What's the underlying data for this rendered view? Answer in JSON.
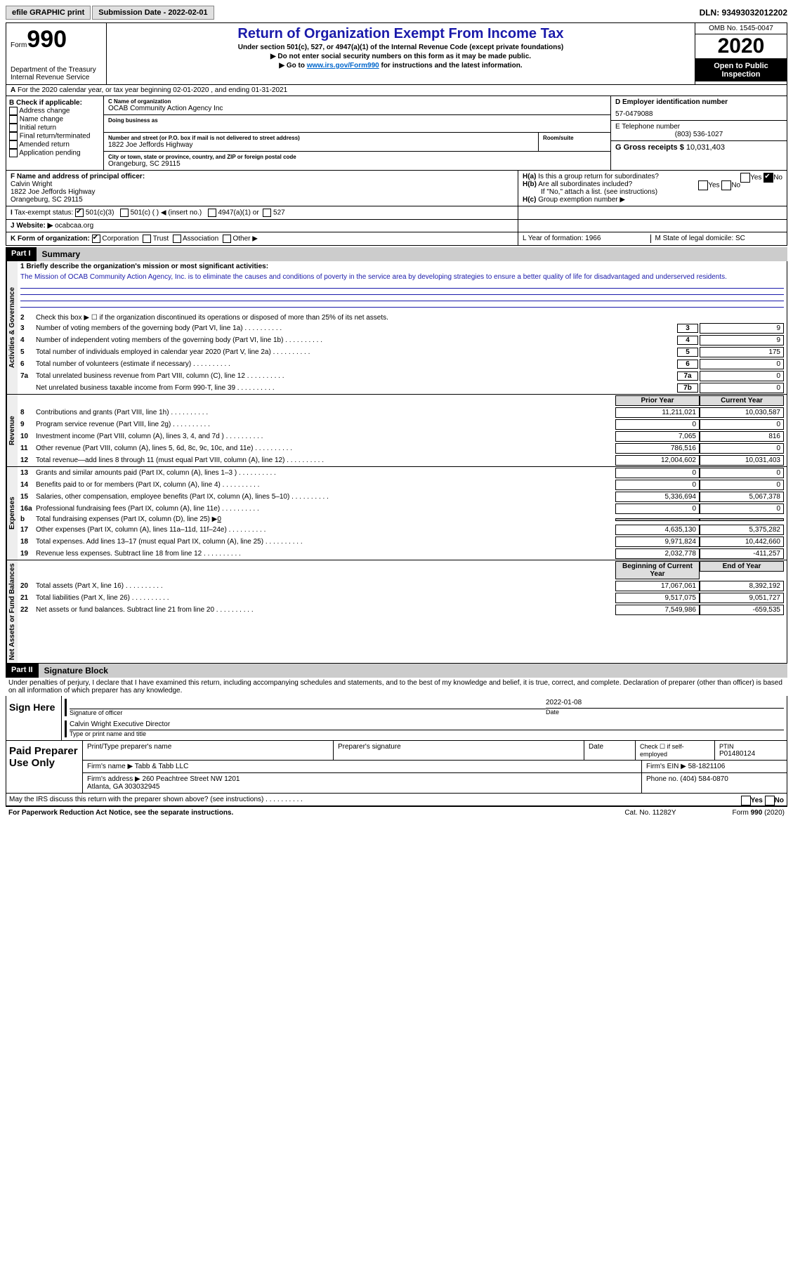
{
  "top": {
    "efile": "efile GRAPHIC print",
    "submission": "Submission Date - 2022-02-01",
    "dln": "DLN: 93493032012202"
  },
  "header": {
    "form_label": "Form",
    "form_num": "990",
    "dept": "Department of the Treasury\nInternal Revenue Service",
    "title": "Return of Organization Exempt From Income Tax",
    "sub1": "Under section 501(c), 527, or 4947(a)(1) of the Internal Revenue Code (except private foundations)",
    "sub2": "▶ Do not enter social security numbers on this form as it may be made public.",
    "sub3_pre": "▶ Go to ",
    "sub3_link": "www.irs.gov/Form990",
    "sub3_post": " for instructions and the latest information.",
    "omb": "OMB No. 1545-0047",
    "year": "2020",
    "open": "Open to Public Inspection"
  },
  "period": "For the 2020 calendar year, or tax year beginning 02-01-2020    , and ending 01-31-2021",
  "B": {
    "label": "B Check if applicable:",
    "items": [
      "Address change",
      "Name change",
      "Initial return",
      "Final return/terminated",
      "Amended return",
      "Application pending"
    ]
  },
  "C": {
    "name_label": "C Name of organization",
    "name": "OCAB Community Action Agency Inc",
    "dba": "Doing business as",
    "addr_label": "Number and street (or P.O. box if mail is not delivered to street address)",
    "addr": "1822 Joe Jeffords Highway",
    "room": "Room/suite",
    "city_label": "City or town, state or province, country, and ZIP or foreign postal code",
    "city": "Orangeburg, SC  29115"
  },
  "D": {
    "label": "D Employer identification number",
    "val": "57-0479088"
  },
  "E": {
    "label": "E Telephone number",
    "val": "(803) 536-1027"
  },
  "G": {
    "label": "G Gross receipts $",
    "val": "10,031,403"
  },
  "F": {
    "label": "F  Name and address of principal officer:",
    "name": "Calvin Wright",
    "addr": "1822 Joe Jeffords Highway\nOrangeburg, SC  29115"
  },
  "H": {
    "a": "Is this a group return for subordinates?",
    "b": "Are all subordinates included?",
    "b_note": "If \"No,\" attach a list. (see instructions)",
    "c": "Group exemption number ▶"
  },
  "I": {
    "label": "Tax-exempt status:",
    "opts": [
      "501(c)(3)",
      "501(c) (  ) ◀ (insert no.)",
      "4947(a)(1) or",
      "527"
    ]
  },
  "J": {
    "label": "Website: ▶",
    "val": "ocabcaa.org"
  },
  "K": {
    "label": "K Form of organization:",
    "opts": [
      "Corporation",
      "Trust",
      "Association",
      "Other ▶"
    ]
  },
  "L": "L Year of formation: 1966",
  "M": "M State of legal domicile: SC",
  "part1": {
    "num": "Part I",
    "title": "Summary"
  },
  "mission_label": "1  Briefly describe the organization's mission or most significant activities:",
  "mission": "The Mission of OCAB Community Action Agency, Inc. is to eliminate the causes and conditions of poverty in the service area by developing strategies to ensure a better quality of life for disadvantaged and underserved residents.",
  "line2": "Check this box ▶ ☐  if the organization discontinued its operations or disposed of more than 25% of its net assets.",
  "gov_lines": [
    {
      "n": "3",
      "t": "Number of voting members of the governing body (Part VI, line 1a)",
      "b": "3",
      "v": "9"
    },
    {
      "n": "4",
      "t": "Number of independent voting members of the governing body (Part VI, line 1b)",
      "b": "4",
      "v": "9"
    },
    {
      "n": "5",
      "t": "Total number of individuals employed in calendar year 2020 (Part V, line 2a)",
      "b": "5",
      "v": "175"
    },
    {
      "n": "6",
      "t": "Total number of volunteers (estimate if necessary)",
      "b": "6",
      "v": "0"
    },
    {
      "n": "7a",
      "t": "Total unrelated business revenue from Part VIII, column (C), line 12",
      "b": "7a",
      "v": "0"
    },
    {
      "n": "",
      "t": "Net unrelated business taxable income from Form 990-T, line 39",
      "b": "7b",
      "v": "0"
    }
  ],
  "col_hdrs": {
    "prior": "Prior Year",
    "current": "Current Year"
  },
  "rev_lines": [
    {
      "n": "8",
      "t": "Contributions and grants (Part VIII, line 1h)",
      "p": "11,211,021",
      "c": "10,030,587"
    },
    {
      "n": "9",
      "t": "Program service revenue (Part VIII, line 2g)",
      "p": "0",
      "c": "0"
    },
    {
      "n": "10",
      "t": "Investment income (Part VIII, column (A), lines 3, 4, and 7d )",
      "p": "7,065",
      "c": "816"
    },
    {
      "n": "11",
      "t": "Other revenue (Part VIII, column (A), lines 5, 6d, 8c, 9c, 10c, and 11e)",
      "p": "786,516",
      "c": "0"
    },
    {
      "n": "12",
      "t": "Total revenue—add lines 8 through 11 (must equal Part VIII, column (A), line 12)",
      "p": "12,004,602",
      "c": "10,031,403"
    }
  ],
  "exp_lines": [
    {
      "n": "13",
      "t": "Grants and similar amounts paid (Part IX, column (A), lines 1–3 )",
      "p": "0",
      "c": "0"
    },
    {
      "n": "14",
      "t": "Benefits paid to or for members (Part IX, column (A), line 4)",
      "p": "0",
      "c": "0"
    },
    {
      "n": "15",
      "t": "Salaries, other compensation, employee benefits (Part IX, column (A), lines 5–10)",
      "p": "5,336,694",
      "c": "5,067,378"
    },
    {
      "n": "16a",
      "t": "Professional fundraising fees (Part IX, column (A), line 11e)",
      "p": "0",
      "c": "0"
    }
  ],
  "line16b": {
    "t": "Total fundraising expenses (Part IX, column (D), line 25) ▶",
    "v": "0"
  },
  "exp_lines2": [
    {
      "n": "17",
      "t": "Other expenses (Part IX, column (A), lines 11a–11d, 11f–24e)",
      "p": "4,635,130",
      "c": "5,375,282"
    },
    {
      "n": "18",
      "t": "Total expenses. Add lines 13–17 (must equal Part IX, column (A), line 25)",
      "p": "9,971,824",
      "c": "10,442,660"
    },
    {
      "n": "19",
      "t": "Revenue less expenses. Subtract line 18 from line 12",
      "p": "2,032,778",
      "c": "-411,257"
    }
  ],
  "bal_hdrs": {
    "beg": "Beginning of Current Year",
    "end": "End of Year"
  },
  "bal_lines": [
    {
      "n": "20",
      "t": "Total assets (Part X, line 16)",
      "p": "17,067,061",
      "c": "8,392,192"
    },
    {
      "n": "21",
      "t": "Total liabilities (Part X, line 26)",
      "p": "9,517,075",
      "c": "9,051,727"
    },
    {
      "n": "22",
      "t": "Net assets or fund balances. Subtract line 21 from line 20",
      "p": "7,549,986",
      "c": "-659,535"
    }
  ],
  "sides": {
    "gov": "Activities & Governance",
    "rev": "Revenue",
    "exp": "Expenses",
    "bal": "Net Assets or Fund Balances"
  },
  "part2": {
    "num": "Part II",
    "title": "Signature Block"
  },
  "penalties": "Under penalties of perjury, I declare that I have examined this return, including accompanying schedules and statements, and to the best of my knowledge and belief, it is true, correct, and complete. Declaration of preparer (other than officer) is based on all information of which preparer has any knowledge.",
  "sign": {
    "here": "Sign Here",
    "date": "2022-01-08",
    "sig_label": "Signature of officer",
    "date_label": "Date",
    "name": "Calvin Wright  Executive Director",
    "name_label": "Type or print name and title"
  },
  "prep": {
    "label": "Paid Preparer Use Only",
    "h1": "Print/Type preparer's name",
    "h2": "Preparer's signature",
    "h3": "Date",
    "h4": "Check ☐  if self-employed",
    "h5_label": "PTIN",
    "h5": "P01480124",
    "firm_label": "Firm's name    ▶",
    "firm": "Tabb & Tabb LLC",
    "ein_label": "Firm's EIN ▶",
    "ein": "58-1821106",
    "addr_label": "Firm's address ▶",
    "addr": "260 Peachtree Street NW 1201\nAtlanta, GA  303032945",
    "phone_label": "Phone no.",
    "phone": "(404) 584-0870"
  },
  "discuss": "May the IRS discuss this return with the preparer shown above? (see instructions)",
  "foot": {
    "l": "For Paperwork Reduction Act Notice, see the separate instructions.",
    "m": "Cat. No. 11282Y",
    "r": "Form 990 (2020)"
  }
}
